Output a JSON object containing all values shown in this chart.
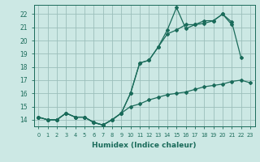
{
  "xlabel": "Humidex (Indice chaleur)",
  "background_color": "#cce8e4",
  "grid_color": "#9bbfbb",
  "line_color": "#1a6b5a",
  "x_values": [
    0,
    1,
    2,
    3,
    4,
    5,
    6,
    7,
    8,
    9,
    10,
    11,
    12,
    13,
    14,
    15,
    16,
    17,
    18,
    19,
    20,
    21,
    22,
    23
  ],
  "line1_y": [
    14.2,
    14.0,
    14.0,
    14.5,
    14.2,
    14.2,
    13.8,
    13.6,
    14.0,
    14.5,
    16.0,
    18.3,
    18.5,
    19.5,
    20.8,
    22.5,
    20.9,
    21.2,
    21.3,
    21.5,
    22.0,
    21.2,
    null,
    null
  ],
  "line2_y": [
    14.2,
    14.0,
    14.0,
    14.5,
    14.2,
    14.2,
    13.8,
    13.6,
    14.0,
    14.5,
    16.0,
    18.3,
    18.5,
    19.5,
    20.5,
    20.8,
    21.2,
    21.2,
    21.5,
    21.5,
    22.0,
    21.4,
    18.7,
    null
  ],
  "line3_y": [
    14.2,
    14.0,
    14.0,
    14.5,
    14.2,
    14.2,
    13.8,
    13.6,
    14.0,
    14.5,
    15.0,
    15.2,
    15.5,
    15.7,
    15.9,
    16.0,
    16.1,
    16.3,
    16.5,
    16.6,
    16.7,
    16.9,
    17.0,
    16.8
  ],
  "ylim": [
    13.5,
    22.7
  ],
  "xlim": [
    -0.5,
    23.5
  ],
  "yticks": [
    14,
    15,
    16,
    17,
    18,
    19,
    20,
    21,
    22
  ],
  "xticks": [
    0,
    1,
    2,
    3,
    4,
    5,
    6,
    7,
    8,
    9,
    10,
    11,
    12,
    13,
    14,
    15,
    16,
    17,
    18,
    19,
    20,
    21,
    22,
    23
  ]
}
